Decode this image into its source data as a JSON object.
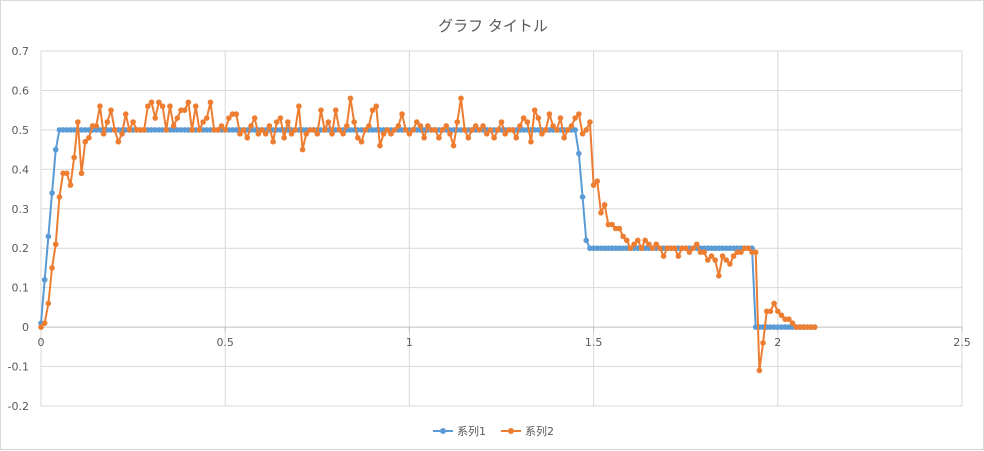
{
  "chart_data": {
    "type": "line",
    "title": "グラフ タイトル",
    "xlim": [
      0,
      2.5
    ],
    "ylim": [
      -0.2,
      0.7
    ],
    "x_ticks": [
      0,
      0.5,
      1,
      1.5,
      2,
      2.5
    ],
    "x_tick_labels": [
      "0",
      "0.5",
      "1",
      "1.5",
      "2",
      "2.5"
    ],
    "y_ticks": [
      -0.2,
      -0.1,
      0,
      0.1,
      0.2,
      0.3,
      0.4,
      0.5,
      0.6,
      0.7
    ],
    "y_tick_labels": [
      "-0.2",
      "-0.1",
      "0",
      "0.1",
      "0.2",
      "0.3",
      "0.4",
      "0.5",
      "0.6",
      "0.7"
    ],
    "grid": true,
    "legend_position": "bottom",
    "series": [
      {
        "name": "系列1",
        "color": "#5B9BD5",
        "x_start": 0,
        "x_step": 0.01,
        "count": 211,
        "values": [
          0.01,
          0.12,
          0.23,
          0.34,
          0.45,
          0.5,
          0.5,
          0.5,
          0.5,
          0.5,
          0.5,
          0.5,
          0.5,
          0.5,
          0.5,
          0.5,
          0.5,
          0.5,
          0.5,
          0.5,
          0.5,
          0.5,
          0.5,
          0.5,
          0.5,
          0.5,
          0.5,
          0.5,
          0.5,
          0.5,
          0.5,
          0.5,
          0.5,
          0.5,
          0.5,
          0.5,
          0.5,
          0.5,
          0.5,
          0.5,
          0.5,
          0.5,
          0.5,
          0.5,
          0.5,
          0.5,
          0.5,
          0.5,
          0.5,
          0.5,
          0.5,
          0.5,
          0.5,
          0.5,
          0.5,
          0.5,
          0.5,
          0.5,
          0.5,
          0.5,
          0.5,
          0.5,
          0.5,
          0.5,
          0.5,
          0.5,
          0.5,
          0.5,
          0.5,
          0.5,
          0.5,
          0.5,
          0.5,
          0.5,
          0.5,
          0.5,
          0.5,
          0.5,
          0.5,
          0.5,
          0.5,
          0.5,
          0.5,
          0.5,
          0.5,
          0.5,
          0.5,
          0.5,
          0.5,
          0.5,
          0.5,
          0.5,
          0.5,
          0.5,
          0.5,
          0.5,
          0.5,
          0.5,
          0.5,
          0.5,
          0.5,
          0.5,
          0.5,
          0.5,
          0.5,
          0.5,
          0.5,
          0.5,
          0.5,
          0.5,
          0.5,
          0.5,
          0.5,
          0.5,
          0.5,
          0.5,
          0.5,
          0.5,
          0.5,
          0.5,
          0.5,
          0.5,
          0.5,
          0.5,
          0.5,
          0.5,
          0.5,
          0.5,
          0.5,
          0.5,
          0.5,
          0.5,
          0.5,
          0.5,
          0.5,
          0.5,
          0.5,
          0.5,
          0.5,
          0.5,
          0.5,
          0.5,
          0.5,
          0.5,
          0.5,
          0.5,
          0.44,
          0.33,
          0.22,
          0.2,
          0.2,
          0.2,
          0.2,
          0.2,
          0.2,
          0.2,
          0.2,
          0.2,
          0.2,
          0.2,
          0.2,
          0.2,
          0.2,
          0.2,
          0.2,
          0.2,
          0.2,
          0.2,
          0.2,
          0.2,
          0.2,
          0.2,
          0.2,
          0.2,
          0.2,
          0.2,
          0.2,
          0.2,
          0.2,
          0.2,
          0.2,
          0.2,
          0.2,
          0.2,
          0.2,
          0.2,
          0.2,
          0.2,
          0.2,
          0.2,
          0.2,
          0.2,
          0.2,
          0.2,
          0,
          0,
          0,
          0,
          0,
          0,
          0,
          0,
          0,
          0,
          0,
          0,
          0,
          0,
          0,
          0,
          0
        ]
      },
      {
        "name": "系列2",
        "color": "#ED7D31",
        "x_start": 0,
        "x_step": 0.01,
        "count": 211,
        "values": [
          0,
          0.01,
          0.06,
          0.15,
          0.21,
          0.33,
          0.39,
          0.39,
          0.36,
          0.43,
          0.52,
          0.39,
          0.47,
          0.48,
          0.51,
          0.51,
          0.56,
          0.49,
          0.52,
          0.55,
          0.5,
          0.47,
          0.49,
          0.54,
          0.5,
          0.52,
          0.5,
          0.5,
          0.5,
          0.56,
          0.57,
          0.53,
          0.57,
          0.56,
          0.5,
          0.56,
          0.51,
          0.53,
          0.55,
          0.55,
          0.57,
          0.5,
          0.56,
          0.5,
          0.52,
          0.53,
          0.57,
          0.5,
          0.5,
          0.51,
          0.5,
          0.53,
          0.54,
          0.54,
          0.49,
          0.5,
          0.48,
          0.51,
          0.53,
          0.49,
          0.5,
          0.49,
          0.51,
          0.47,
          0.52,
          0.53,
          0.48,
          0.52,
          0.49,
          0.5,
          0.56,
          0.45,
          0.49,
          0.5,
          0.5,
          0.49,
          0.55,
          0.5,
          0.52,
          0.49,
          0.55,
          0.5,
          0.49,
          0.51,
          0.58,
          0.52,
          0.48,
          0.47,
          0.5,
          0.51,
          0.55,
          0.56,
          0.46,
          0.49,
          0.5,
          0.49,
          0.5,
          0.51,
          0.54,
          0.5,
          0.49,
          0.5,
          0.52,
          0.51,
          0.48,
          0.51,
          0.5,
          0.5,
          0.48,
          0.5,
          0.51,
          0.49,
          0.46,
          0.52,
          0.58,
          0.5,
          0.48,
          0.5,
          0.51,
          0.5,
          0.51,
          0.49,
          0.5,
          0.48,
          0.5,
          0.52,
          0.49,
          0.5,
          0.5,
          0.48,
          0.51,
          0.53,
          0.52,
          0.47,
          0.55,
          0.53,
          0.49,
          0.5,
          0.54,
          0.51,
          0.5,
          0.53,
          0.48,
          0.5,
          0.51,
          0.53,
          0.54,
          0.49,
          0.5,
          0.52,
          0.36,
          0.37,
          0.29,
          0.31,
          0.26,
          0.26,
          0.25,
          0.25,
          0.23,
          0.22,
          0.2,
          0.21,
          0.22,
          0.2,
          0.22,
          0.21,
          0.2,
          0.21,
          0.2,
          0.18,
          0.2,
          0.2,
          0.2,
          0.18,
          0.2,
          0.2,
          0.19,
          0.2,
          0.21,
          0.19,
          0.19,
          0.17,
          0.18,
          0.17,
          0.13,
          0.18,
          0.17,
          0.16,
          0.18,
          0.19,
          0.19,
          0.2,
          0.2,
          0.19,
          0.19,
          -0.11,
          -0.04,
          0.04,
          0.04,
          0.06,
          0.04,
          0.03,
          0.02,
          0.02,
          0.01,
          0,
          0,
          0,
          0,
          0,
          0
        ]
      }
    ]
  }
}
